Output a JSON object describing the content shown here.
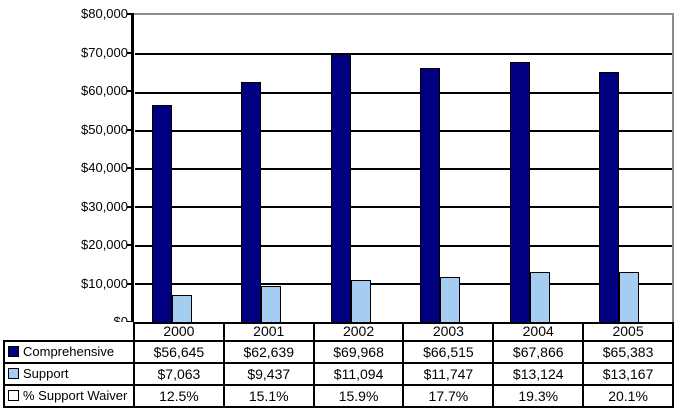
{
  "chart_data": {
    "type": "bar",
    "categories": [
      "2000",
      "2001",
      "2002",
      "2003",
      "2004",
      "2005"
    ],
    "series": [
      {
        "name": "Comprehensive",
        "values": [
          56645,
          62639,
          69968,
          66515,
          67866,
          65383
        ],
        "color": "#000080"
      },
      {
        "name": "Support",
        "values": [
          7063,
          9437,
          11094,
          11747,
          13124,
          13167
        ],
        "color": "#A4CDF1"
      },
      {
        "name": "% Support Waiver",
        "values": [
          12.5,
          15.1,
          15.9,
          17.7,
          19.3,
          20.1
        ],
        "color": "#FFFFFF"
      }
    ],
    "title": "",
    "xlabel": "",
    "ylabel": "",
    "ylim": [
      0,
      80000
    ],
    "grid": true,
    "legend_position": "table-left",
    "y_ticks": [
      "$80,000",
      "$70,000",
      "$60,000",
      "$50,000",
      "$40,000",
      "$30,000",
      "$20,000",
      "$10,000",
      "$0"
    ]
  },
  "table": {
    "rows": [
      {
        "label": "Comprehensive",
        "marker_color": "#000080",
        "values": [
          "$56,645",
          "$62,639",
          "$69,968",
          "$66,515",
          "$67,866",
          "$65,383"
        ]
      },
      {
        "label": "Support",
        "marker_color": "#A4CDF1",
        "values": [
          "$7,063",
          "$9,437",
          "$11,094",
          "$11,747",
          "$13,124",
          "$13,167"
        ]
      },
      {
        "label": "% Support Waiver",
        "marker_color": "#FFFFFF",
        "values": [
          "12.5%",
          "15.1%",
          "15.9%",
          "17.7%",
          "19.3%",
          "20.1%"
        ]
      }
    ]
  }
}
